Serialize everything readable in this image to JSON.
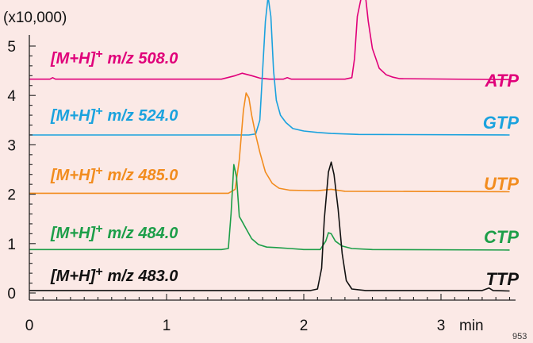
{
  "chart_data": {
    "type": "line",
    "y_multiplier_label": "(x10,000)",
    "x_unit": "min",
    "figure_code": "953",
    "xlim": [
      0,
      3.5
    ],
    "ylim": [
      0,
      5.4
    ],
    "x_ticks": [
      0,
      1,
      2,
      3
    ],
    "x_tick_labels": [
      "0",
      "1",
      "2",
      "3"
    ],
    "y_ticks": [
      0,
      1,
      2,
      3,
      4,
      5
    ],
    "y_tick_labels": [
      "0",
      "1",
      "2",
      "3",
      "4",
      "5"
    ],
    "grid": false,
    "series": [
      {
        "name": "ATP",
        "ion_prefix": "[M+H]",
        "ion_sup": "+",
        "ion_mz": "m/z 508.0",
        "color": "#e0007a",
        "x": [
          0.0,
          0.15,
          0.17,
          0.19,
          1.4,
          1.5,
          1.55,
          1.62,
          1.68,
          1.75,
          1.85,
          1.88,
          1.91,
          2.0,
          2.3,
          2.35,
          2.37,
          2.39,
          2.42,
          2.45,
          2.47,
          2.5,
          2.55,
          2.6,
          2.65,
          2.7,
          3.5
        ],
        "values": [
          4.33,
          4.33,
          4.36,
          4.33,
          4.33,
          4.4,
          4.45,
          4.4,
          4.35,
          4.33,
          4.33,
          4.36,
          4.33,
          4.33,
          4.33,
          4.36,
          4.75,
          5.6,
          6.0,
          6.0,
          5.5,
          4.95,
          4.55,
          4.42,
          4.37,
          4.34,
          4.32
        ]
      },
      {
        "name": "GTP",
        "ion_prefix": "[M+H]",
        "ion_sup": "+",
        "ion_mz": "m/z 524.0",
        "color": "#1aa2de",
        "x": [
          0.0,
          1.6,
          1.65,
          1.68,
          1.7,
          1.72,
          1.74,
          1.76,
          1.78,
          1.8,
          1.83,
          1.87,
          1.92,
          2.0,
          2.1,
          2.2,
          2.4,
          3.5
        ],
        "values": [
          3.2,
          3.2,
          3.22,
          3.5,
          4.5,
          5.5,
          6.0,
          5.6,
          4.5,
          3.9,
          3.6,
          3.45,
          3.33,
          3.28,
          3.25,
          3.23,
          3.21,
          3.2
        ]
      },
      {
        "name": "UTP",
        "ion_prefix": "[M+H]",
        "ion_sup": "+",
        "ion_mz": "m/z 485.0",
        "color": "#f28c1e",
        "x": [
          0.0,
          1.45,
          1.5,
          1.53,
          1.56,
          1.58,
          1.6,
          1.62,
          1.65,
          1.68,
          1.72,
          1.77,
          1.82,
          1.9,
          2.1,
          2.2,
          2.3,
          3.5
        ],
        "values": [
          2.02,
          2.02,
          2.1,
          2.7,
          3.7,
          4.05,
          3.95,
          3.6,
          3.2,
          2.85,
          2.45,
          2.22,
          2.12,
          2.08,
          2.07,
          2.1,
          2.06,
          2.05
        ]
      },
      {
        "name": "CTP",
        "ion_prefix": "[M+H]",
        "ion_sup": "+",
        "ion_mz": "m/z 484.0",
        "color": "#1c9e48",
        "x": [
          0.0,
          1.4,
          1.45,
          1.47,
          1.49,
          1.51,
          1.53,
          1.55,
          1.58,
          1.62,
          1.67,
          1.73,
          1.8,
          1.9,
          2.0,
          2.12,
          2.16,
          2.18,
          2.2,
          2.23,
          2.28,
          2.35,
          2.5,
          3.5
        ],
        "values": [
          0.88,
          0.88,
          0.9,
          1.6,
          2.6,
          2.35,
          1.55,
          1.45,
          1.3,
          1.1,
          0.98,
          0.93,
          0.92,
          0.9,
          0.88,
          0.88,
          1.05,
          1.22,
          1.2,
          1.05,
          0.95,
          0.9,
          0.88,
          0.87
        ]
      },
      {
        "name": "TTP",
        "ion_prefix": "[M+H]",
        "ion_sup": "+",
        "ion_mz": "m/z 483.0",
        "color": "#111111",
        "x": [
          0.0,
          2.05,
          2.1,
          2.13,
          2.15,
          2.18,
          2.2,
          2.22,
          2.25,
          2.28,
          2.31,
          2.35,
          2.45,
          3.3,
          3.35,
          3.38,
          3.5
        ],
        "values": [
          0.05,
          0.05,
          0.08,
          0.5,
          1.5,
          2.45,
          2.65,
          2.4,
          1.7,
          0.8,
          0.25,
          0.08,
          0.05,
          0.05,
          0.1,
          0.05,
          0.04
        ]
      }
    ]
  }
}
